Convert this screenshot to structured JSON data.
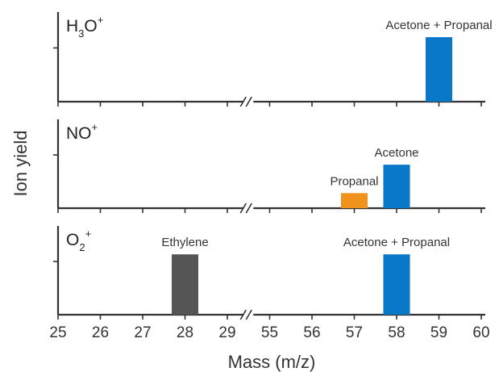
{
  "chart_data": {
    "type": "bar",
    "xlabel": "Mass (m/z)",
    "ylabel": "Ion yield",
    "x_ticks": [
      "25",
      "26",
      "27",
      "28",
      "29",
      "55",
      "56",
      "57",
      "58",
      "59",
      "60"
    ],
    "x_axis_break": "between 29 and 55",
    "panels": [
      {
        "reagent_ion": {
          "base": "H",
          "sub": "3",
          "tail": "O",
          "sup": "+"
        },
        "bars": [
          {
            "mass": 59,
            "relative_yield": 0.72,
            "color": "#0a78c8",
            "label": "Acetone + Propanal"
          }
        ]
      },
      {
        "reagent_ion": {
          "base": "NO",
          "sub": "",
          "tail": "",
          "sup": "+"
        },
        "bars": [
          {
            "mass": 57,
            "relative_yield": 0.17,
            "color": "#f0921e",
            "label": "Propanal"
          },
          {
            "mass": 58,
            "relative_yield": 0.49,
            "color": "#0a78c8",
            "label": "Acetone"
          }
        ]
      },
      {
        "reagent_ion": {
          "base": "O",
          "sub": "2",
          "tail": "",
          "sup": "+"
        },
        "bars": [
          {
            "mass": 28,
            "relative_yield": 0.68,
            "color": "#555555",
            "label": "Ethylene"
          },
          {
            "mass": 58,
            "relative_yield": 0.68,
            "color": "#0a78c8",
            "label": "Acetone + Propanal"
          }
        ]
      }
    ]
  }
}
